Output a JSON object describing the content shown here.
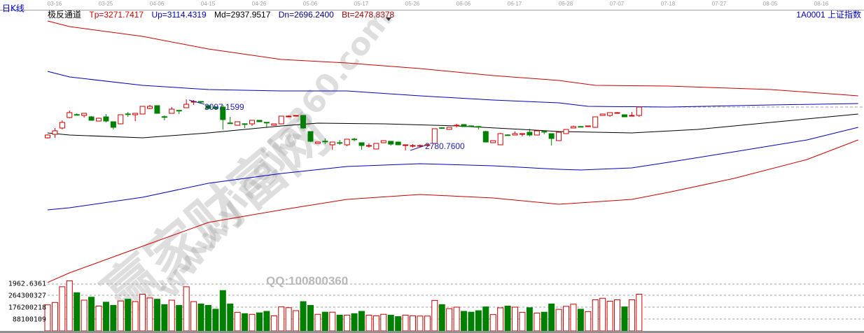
{
  "period_label": "日K线",
  "symbol_label": "1A0001  上证指数",
  "indicator": {
    "name": "极反通道",
    "tp": "Tp=3271.7417",
    "up": "Up=3114.4319",
    "md": "Md=2937.9517",
    "dn": "Dn=2696.2400",
    "bt": "Bt=2478.8378"
  },
  "date_ticks": [
    "03-16",
    "03-25",
    "04-06",
    "04-15",
    "04-26",
    "05-06",
    "05-17",
    "05-26",
    "06-06",
    "06-17",
    "06-28",
    "07-07",
    "07-18",
    "07-27",
    "08-05",
    "08-16"
  ],
  "annotations": {
    "high": "3097.1599",
    "low": "2780.7600"
  },
  "volume_axis": [
    "1962.6361",
    "264300327",
    "176200218",
    "88100109"
  ],
  "watermark": {
    "brand": "赢家财富网",
    "site": "www.yingjia360.com",
    "qq": "QQ:100800360"
  },
  "colors": {
    "up": "#cc0000",
    "down": "#008000",
    "tp": "#cc0000",
    "upline": "#0000c0",
    "md": "#000000",
    "dn": "#0000c0",
    "bt": "#cc0000"
  },
  "chart_data": {
    "type": "candlestick",
    "ohlc": [
      [
        2858.8,
        2880.5,
        2854.5,
        2876.2
      ],
      [
        2880.5,
        2919.5,
        2858.8,
        2902.2
      ],
      [
        2919.5,
        2967.2,
        2910.8,
        2954.2
      ],
      [
        2984.5,
        3027.8,
        2980.2,
        3014.8
      ],
      [
        3003.0,
        3010.5,
        2997.5,
        3001.8
      ],
      [
        2997.5,
        3012.0,
        2984.5,
        3010.5
      ],
      [
        2988.8,
        2993.2,
        2967.2,
        2967.2
      ],
      [
        2962.8,
        2984.0,
        2960.0,
        2980.2
      ],
      [
        2988.8,
        3006.2,
        2954.2,
        2962.8
      ],
      [
        2958.5,
        2960.0,
        2910.8,
        2923.8
      ],
      [
        2945.5,
        3003.0,
        2943.0,
        3001.8
      ],
      [
        3007.0,
        3019.0,
        2988.8,
        3006.2
      ],
      [
        3001.8,
        3012.0,
        2962.8,
        3010.5
      ],
      [
        3006.2,
        3056.0,
        3004.0,
        3053.8
      ],
      [
        3040.8,
        3062.5,
        3036.5,
        3053.8
      ],
      [
        3058.2,
        3060.0,
        3010.5,
        3010.5
      ],
      [
        2990.0,
        2997.5,
        2967.2,
        2988.8
      ],
      [
        3010.5,
        3049.5,
        3008.0,
        3036.5
      ],
      [
        3029.0,
        3030.0,
        3006.2,
        3027.8
      ],
      [
        3045.2,
        3097.16,
        3043.0,
        3066.8
      ],
      [
        3083.0,
        3092.8,
        3062.5,
        3084.2
      ],
      [
        3084.2,
        3086.0,
        3071.0,
        3079.9
      ],
      [
        3058.2,
        3062.0,
        3040.8,
        3040.8
      ],
      [
        3050.0,
        3055.0,
        3036.0,
        3040.0
      ],
      [
        3049.5,
        3062.5,
        2910.8,
        2971.5
      ],
      [
        2951.0,
        2988.8,
        2945.5,
        2949.8
      ],
      [
        2936.8,
        2958.5,
        2934.0,
        2958.5
      ],
      [
        2946.0,
        2949.0,
        2919.5,
        2945.5
      ],
      [
        2945.5,
        2969.0,
        2932.5,
        2967.2
      ],
      [
        2967.2,
        2969.0,
        2956.0,
        2958.5
      ],
      [
        2955.0,
        2956.0,
        2919.5,
        2954.2
      ],
      [
        2936.8,
        2946.0,
        2934.0,
        2945.5
      ],
      [
        2945.5,
        2995.0,
        2943.0,
        2993.2
      ],
      [
        2992.0,
        2998.0,
        2988.8,
        2993.2
      ],
      [
        2996.0,
        3000.0,
        2993.0,
        2997.5
      ],
      [
        2997.5,
        3000.0,
        2915.0,
        2919.5
      ],
      [
        2897.8,
        2900.0,
        2833.0,
        2837.2
      ],
      [
        2824.2,
        2835.0,
        2822.0,
        2832.8
      ],
      [
        2838.0,
        2854.5,
        2819.8,
        2837.2
      ],
      [
        2815.5,
        2835.0,
        2785.0,
        2832.8
      ],
      [
        2829.0,
        2845.8,
        2815.5,
        2828.5
      ],
      [
        2815.5,
        2852.0,
        2806.8,
        2850.2
      ],
      [
        2851.0,
        2858.8,
        2837.2,
        2850.2
      ],
      [
        2828.5,
        2830.0,
        2785.2,
        2811.2
      ],
      [
        2810.0,
        2824.2,
        2798.2,
        2811.2
      ],
      [
        2789.5,
        2826.0,
        2787.0,
        2824.2
      ],
      [
        2828.5,
        2843.0,
        2826.0,
        2841.5
      ],
      [
        2837.2,
        2839.0,
        2811.2,
        2819.8
      ],
      [
        2832.8,
        2836.0,
        2813.0,
        2815.5
      ],
      [
        2814.0,
        2818.0,
        2780.76,
        2815.5
      ],
      [
        2810.0,
        2820.0,
        2800.0,
        2811.2
      ],
      [
        2810.0,
        2818.0,
        2802.0,
        2811.2
      ],
      [
        2813.0,
        2820.0,
        2808.0,
        2815.5
      ],
      [
        2824.2,
        2917.0,
        2822.0,
        2915.2
      ],
      [
        2921.0,
        2924.0,
        2917.0,
        2919.5
      ],
      [
        2910.8,
        2926.0,
        2908.0,
        2923.8
      ],
      [
        2935.0,
        2945.5,
        2923.8,
        2936.8
      ],
      [
        2941.2,
        2943.0,
        2926.0,
        2928.2
      ],
      [
        2933.0,
        2935.0,
        2930.0,
        2932.5
      ],
      [
        2929.0,
        2931.0,
        2910.8,
        2928.2
      ],
      [
        2897.8,
        2902.2,
        2830.0,
        2832.8
      ],
      [
        2828.5,
        2843.0,
        2826.0,
        2841.5
      ],
      [
        2815.5,
        2889.0,
        2813.0,
        2884.8
      ],
      [
        2877.0,
        2880.5,
        2872.0,
        2876.2
      ],
      [
        2876.2,
        2897.8,
        2874.0,
        2884.8
      ],
      [
        2884.0,
        2886.0,
        2867.5,
        2884.8
      ],
      [
        2893.5,
        2915.2,
        2867.5,
        2876.2
      ],
      [
        2876.2,
        2904.0,
        2874.0,
        2902.2
      ],
      [
        2898.5,
        2900.0,
        2880.5,
        2897.8
      ],
      [
        2884.8,
        2887.0,
        2811.2,
        2854.5
      ],
      [
        2841.5,
        2895.0,
        2839.0,
        2893.5
      ],
      [
        2884.8,
        2912.0,
        2882.0,
        2910.8
      ],
      [
        2919.5,
        2935.0,
        2917.0,
        2928.2
      ],
      [
        2929.0,
        2931.0,
        2926.0,
        2928.2
      ],
      [
        2932.0,
        2934.0,
        2926.0,
        2932.5
      ],
      [
        2923.8,
        2990.0,
        2921.0,
        2988.8
      ],
      [
        2997.5,
        3008.0,
        2995.0,
        3006.2
      ],
      [
        2997.5,
        3016.0,
        2988.8,
        3014.8
      ],
      [
        3014.0,
        3018.0,
        3008.0,
        3014.8
      ],
      [
        3001.8,
        3003.0,
        2988.0,
        2988.8
      ],
      [
        2996.0,
        3019.0,
        2993.0,
        2997.5
      ],
      [
        2997.5,
        3051.0,
        2988.8,
        3049.5
      ]
    ],
    "volume_millions": [
      193,
      211,
      327,
      371,
      283,
      228,
      250,
      184,
      213,
      189,
      222,
      235,
      217,
      272,
      244,
      235,
      195,
      228,
      189,
      327,
      217,
      200,
      189,
      161,
      299,
      200,
      138,
      128,
      123,
      134,
      145,
      112,
      178,
      172,
      150,
      217,
      189,
      123,
      139,
      139,
      117,
      117,
      128,
      145,
      117,
      112,
      123,
      117,
      106,
      117,
      112,
      110,
      110,
      226,
      195,
      165,
      176,
      145,
      139,
      150,
      178,
      121,
      171,
      184,
      176,
      138,
      172,
      132,
      139,
      200,
      160,
      182,
      198,
      161,
      143,
      231,
      242,
      220,
      231,
      178,
      231,
      272
    ],
    "channel": {
      "tp": [
        [
          0,
          3582.6
        ],
        [
          3,
          3547.9
        ],
        [
          13,
          3487.2
        ],
        [
          22,
          3409.2
        ],
        [
          32,
          3344.2
        ],
        [
          41,
          3322.5
        ],
        [
          51,
          3287.9
        ],
        [
          61,
          3244.5
        ],
        [
          70,
          3214.2
        ],
        [
          75,
          3183.9
        ],
        [
          85,
          3179.5
        ],
        [
          99,
          3157.8
        ],
        [
          111,
          3118.8
        ]
      ],
      "up": [
        [
          0,
          3270.5
        ],
        [
          3,
          3235.9
        ],
        [
          13,
          3183.9
        ],
        [
          22,
          3157.8
        ],
        [
          32,
          3149.2
        ],
        [
          41,
          3149.2
        ],
        [
          51,
          3118.8
        ],
        [
          61,
          3092.8
        ],
        [
          70,
          3075.5
        ],
        [
          74,
          3053.8
        ],
        [
          85,
          3049.5
        ],
        [
          99,
          3062.5
        ],
        [
          111,
          3071.2
        ]
      ],
      "md": [
        [
          0,
          2889.1
        ],
        [
          3,
          2876.1
        ],
        [
          13,
          2858.8
        ],
        [
          22,
          2889.1
        ],
        [
          32,
          2932.5
        ],
        [
          37,
          2949.8
        ],
        [
          46,
          2945.5
        ],
        [
          56,
          2932.5
        ],
        [
          65,
          2910.8
        ],
        [
          70,
          2897.8
        ],
        [
          80,
          2889.1
        ],
        [
          89,
          2910.8
        ],
        [
          99,
          2954.2
        ],
        [
          111,
          3006.2
        ]
      ],
      "dn": [
        [
          0,
          2412.4
        ],
        [
          3,
          2425.4
        ],
        [
          13,
          2490.4
        ],
        [
          22,
          2577.1
        ],
        [
          32,
          2637.8
        ],
        [
          41,
          2681.3
        ],
        [
          51,
          2698.4
        ],
        [
          61,
          2685.4
        ],
        [
          70,
          2663.8
        ],
        [
          73,
          2659.4
        ],
        [
          80,
          2672.4
        ],
        [
          85,
          2707.1
        ],
        [
          94,
          2772.1
        ],
        [
          104,
          2845.8
        ],
        [
          111,
          2923.8
        ]
      ],
      "bt": [
        [
          0,
          1962.6
        ],
        [
          3,
          2022.3
        ],
        [
          13,
          2187.0
        ],
        [
          22,
          2334.4
        ],
        [
          32,
          2412.4
        ],
        [
          41,
          2477.4
        ],
        [
          51,
          2507.7
        ],
        [
          61,
          2486.1
        ],
        [
          70,
          2447.1
        ],
        [
          80,
          2477.4
        ],
        [
          85,
          2520.7
        ],
        [
          94,
          2607.4
        ],
        [
          104,
          2724.4
        ],
        [
          111,
          2845.8
        ]
      ]
    },
    "volume_gridlines_millions": [
      88.1,
      176.2,
      264.3
    ],
    "last_close_reference": 3049.5
  }
}
